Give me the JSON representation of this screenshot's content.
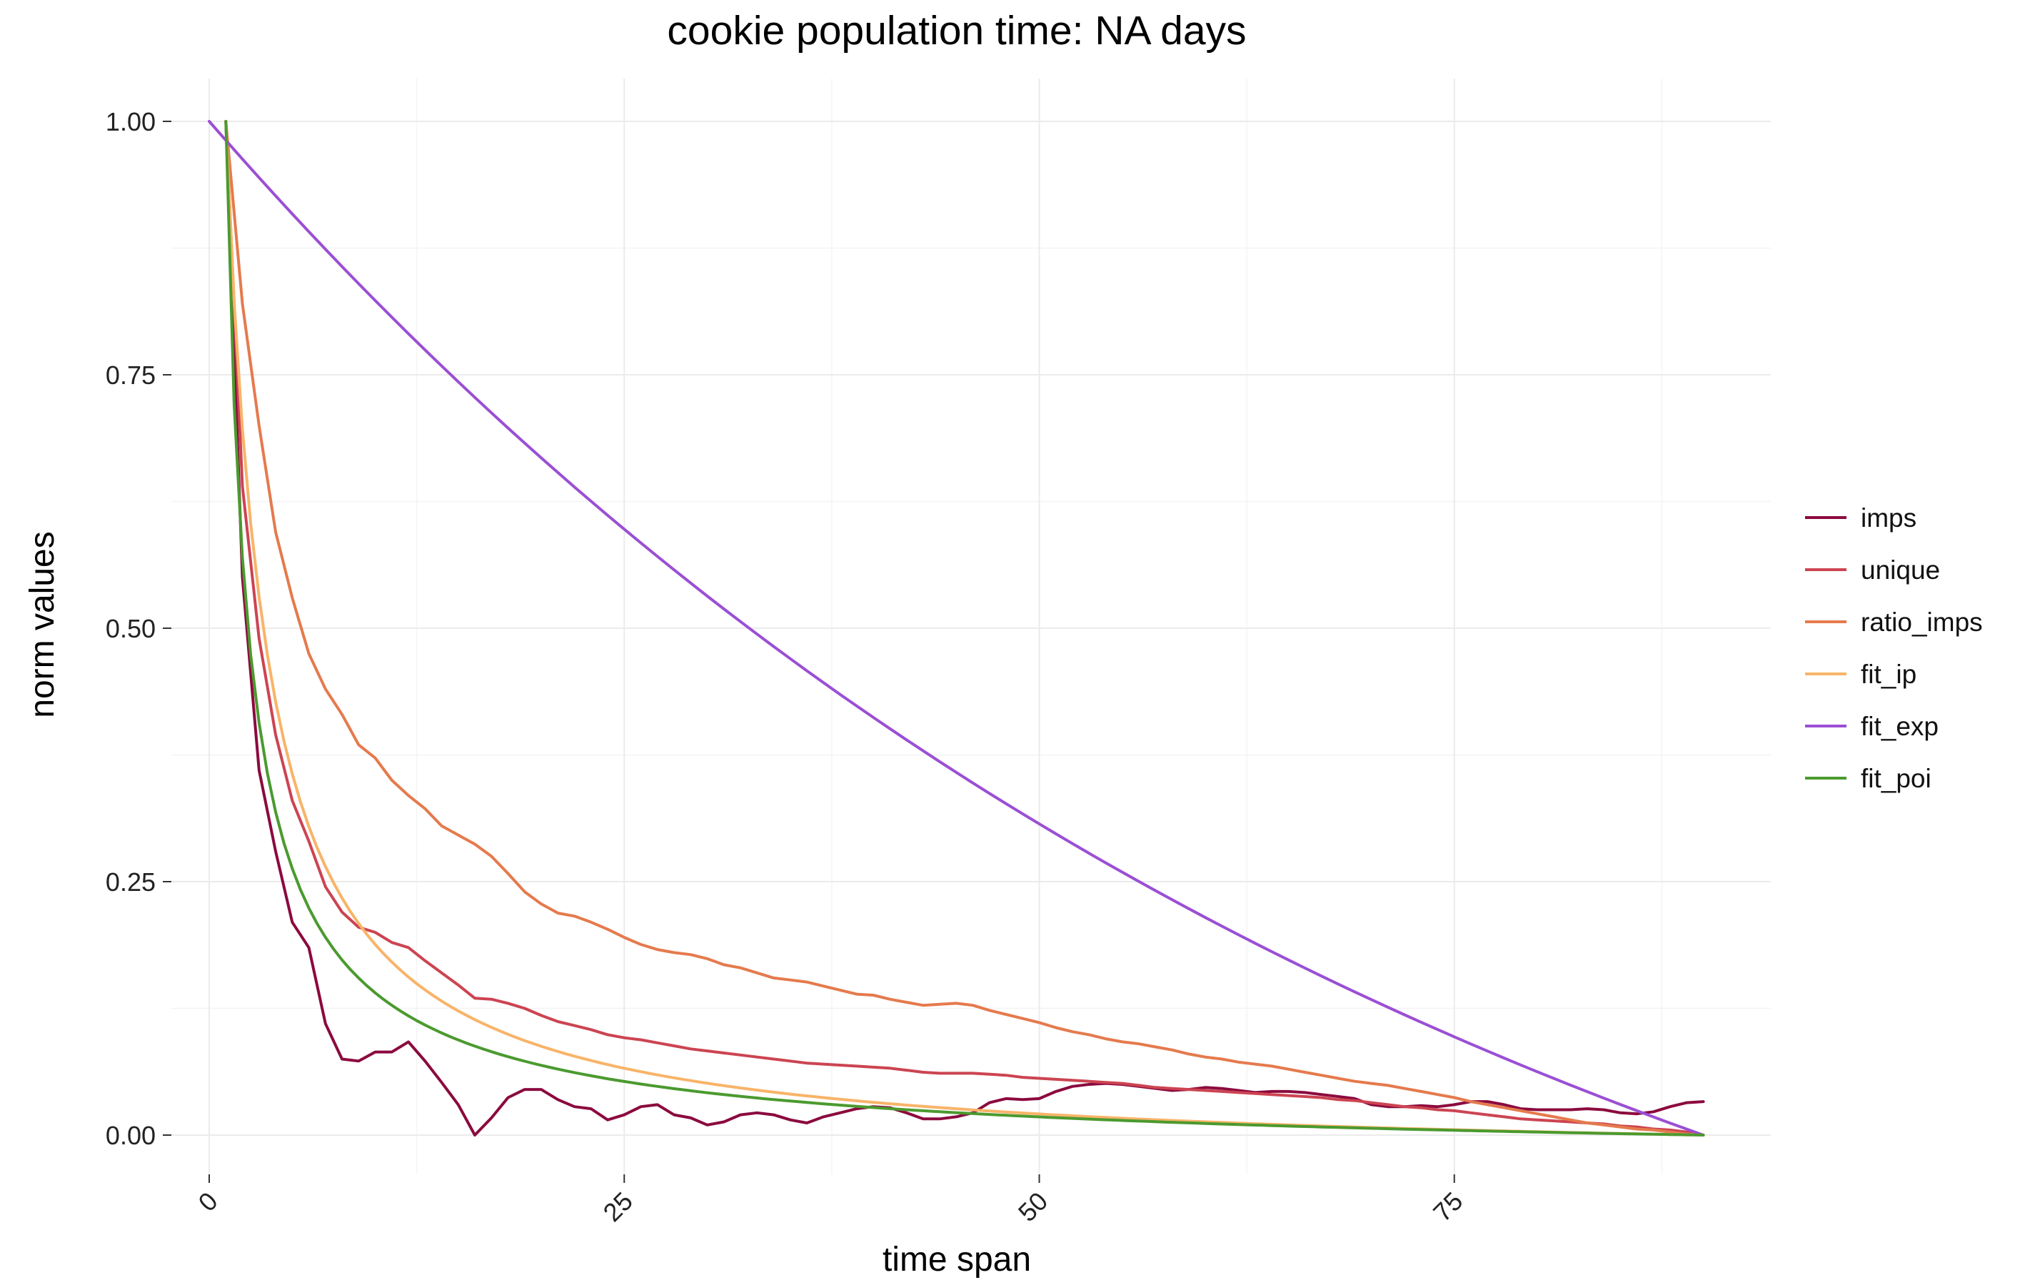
{
  "chart_data": {
    "type": "line",
    "title": "cookie population time: NA days",
    "xlabel": "time span",
    "ylabel": "norm values",
    "xlim": [
      -2.5,
      94.5
    ],
    "ylim": [
      -0.05,
      1.05
    ],
    "x_ticks": [
      0,
      25,
      50,
      75
    ],
    "x_tick_labels": [
      "0",
      "25",
      "50",
      "75"
    ],
    "y_ticks": [
      0,
      0.25,
      0.5,
      0.75,
      1.0
    ],
    "y_tick_labels": [
      "0.00",
      "0.25",
      "0.50",
      "0.75",
      "1.00"
    ],
    "grid": true,
    "legend_position": "right",
    "series": [
      {
        "name": "imps",
        "color": "#8b0a3e",
        "points": [
          [
            1,
            1.0
          ],
          [
            2,
            0.55
          ],
          [
            3,
            0.36
          ],
          [
            4,
            0.28
          ],
          [
            5,
            0.21
          ],
          [
            6,
            0.185
          ],
          [
            7,
            0.11
          ],
          [
            8,
            0.075
          ],
          [
            9,
            0.073
          ],
          [
            10,
            0.082
          ],
          [
            11,
            0.082
          ],
          [
            12,
            0.092
          ],
          [
            13,
            0.073
          ],
          [
            14,
            0.052
          ],
          [
            15,
            0.03
          ],
          [
            16,
            0.0
          ],
          [
            17,
            0.017
          ],
          [
            18,
            0.037
          ],
          [
            19,
            0.045
          ],
          [
            20,
            0.045
          ],
          [
            21,
            0.035
          ],
          [
            22,
            0.028
          ],
          [
            23,
            0.026
          ],
          [
            24,
            0.015
          ],
          [
            25,
            0.02
          ],
          [
            26,
            0.028
          ],
          [
            27,
            0.03
          ],
          [
            28,
            0.02
          ],
          [
            29,
            0.017
          ],
          [
            30,
            0.01
          ],
          [
            31,
            0.013
          ],
          [
            32,
            0.02
          ],
          [
            33,
            0.022
          ],
          [
            34,
            0.02
          ],
          [
            35,
            0.015
          ],
          [
            36,
            0.012
          ],
          [
            37,
            0.018
          ],
          [
            38,
            0.022
          ],
          [
            39,
            0.026
          ],
          [
            40,
            0.028
          ],
          [
            41,
            0.027
          ],
          [
            42,
            0.022
          ],
          [
            43,
            0.016
          ],
          [
            44,
            0.016
          ],
          [
            45,
            0.018
          ],
          [
            46,
            0.022
          ],
          [
            47,
            0.032
          ],
          [
            48,
            0.036
          ],
          [
            49,
            0.035
          ],
          [
            50,
            0.036
          ],
          [
            51,
            0.043
          ],
          [
            52,
            0.048
          ],
          [
            53,
            0.05
          ],
          [
            54,
            0.051
          ],
          [
            55,
            0.05
          ],
          [
            56,
            0.048
          ],
          [
            57,
            0.046
          ],
          [
            58,
            0.044
          ],
          [
            59,
            0.045
          ],
          [
            60,
            0.047
          ],
          [
            61,
            0.046
          ],
          [
            62,
            0.044
          ],
          [
            63,
            0.042
          ],
          [
            64,
            0.043
          ],
          [
            65,
            0.043
          ],
          [
            66,
            0.042
          ],
          [
            67,
            0.04
          ],
          [
            68,
            0.038
          ],
          [
            69,
            0.036
          ],
          [
            70,
            0.03
          ],
          [
            71,
            0.028
          ],
          [
            72,
            0.028
          ],
          [
            73,
            0.029
          ],
          [
            74,
            0.028
          ],
          [
            75,
            0.03
          ],
          [
            76,
            0.033
          ],
          [
            77,
            0.033
          ],
          [
            78,
            0.03
          ],
          [
            79,
            0.026
          ],
          [
            80,
            0.025
          ],
          [
            81,
            0.025
          ],
          [
            82,
            0.025
          ],
          [
            83,
            0.026
          ],
          [
            84,
            0.025
          ],
          [
            85,
            0.022
          ],
          [
            86,
            0.021
          ],
          [
            87,
            0.023
          ],
          [
            88,
            0.028
          ],
          [
            89,
            0.032
          ],
          [
            90,
            0.033
          ]
        ]
      },
      {
        "name": "unique",
        "color": "#cc4452",
        "points": [
          [
            1,
            1.0
          ],
          [
            2,
            0.64
          ],
          [
            3,
            0.49
          ],
          [
            4,
            0.395
          ],
          [
            5,
            0.33
          ],
          [
            6,
            0.29
          ],
          [
            7,
            0.245
          ],
          [
            8,
            0.22
          ],
          [
            9,
            0.205
          ],
          [
            10,
            0.2
          ],
          [
            11,
            0.19
          ],
          [
            12,
            0.185
          ],
          [
            13,
            0.172
          ],
          [
            14,
            0.16
          ],
          [
            15,
            0.148
          ],
          [
            16,
            0.135
          ],
          [
            17,
            0.134
          ],
          [
            18,
            0.13
          ],
          [
            19,
            0.125
          ],
          [
            20,
            0.118
          ],
          [
            21,
            0.112
          ],
          [
            22,
            0.108
          ],
          [
            23,
            0.104
          ],
          [
            24,
            0.099
          ],
          [
            25,
            0.096
          ],
          [
            26,
            0.094
          ],
          [
            27,
            0.091
          ],
          [
            28,
            0.088
          ],
          [
            29,
            0.085
          ],
          [
            30,
            0.083
          ],
          [
            31,
            0.081
          ],
          [
            32,
            0.079
          ],
          [
            33,
            0.077
          ],
          [
            34,
            0.075
          ],
          [
            35,
            0.073
          ],
          [
            36,
            0.071
          ],
          [
            37,
            0.07
          ],
          [
            38,
            0.069
          ],
          [
            39,
            0.068
          ],
          [
            40,
            0.067
          ],
          [
            41,
            0.066
          ],
          [
            42,
            0.064
          ],
          [
            43,
            0.062
          ],
          [
            44,
            0.061
          ],
          [
            45,
            0.061
          ],
          [
            46,
            0.061
          ],
          [
            47,
            0.06
          ],
          [
            48,
            0.059
          ],
          [
            49,
            0.057
          ],
          [
            50,
            0.056
          ],
          [
            51,
            0.055
          ],
          [
            52,
            0.054
          ],
          [
            53,
            0.053
          ],
          [
            54,
            0.052
          ],
          [
            55,
            0.051
          ],
          [
            56,
            0.049
          ],
          [
            57,
            0.047
          ],
          [
            58,
            0.046
          ],
          [
            59,
            0.045
          ],
          [
            60,
            0.044
          ],
          [
            61,
            0.043
          ],
          [
            62,
            0.042
          ],
          [
            63,
            0.041
          ],
          [
            64,
            0.04
          ],
          [
            65,
            0.039
          ],
          [
            66,
            0.038
          ],
          [
            67,
            0.037
          ],
          [
            68,
            0.035
          ],
          [
            69,
            0.034
          ],
          [
            70,
            0.032
          ],
          [
            71,
            0.03
          ],
          [
            72,
            0.028
          ],
          [
            73,
            0.027
          ],
          [
            74,
            0.025
          ],
          [
            75,
            0.024
          ],
          [
            76,
            0.022
          ],
          [
            77,
            0.02
          ],
          [
            78,
            0.018
          ],
          [
            79,
            0.016
          ],
          [
            80,
            0.015
          ],
          [
            81,
            0.014
          ],
          [
            82,
            0.013
          ],
          [
            83,
            0.012
          ],
          [
            84,
            0.011
          ],
          [
            85,
            0.009
          ],
          [
            86,
            0.008
          ],
          [
            87,
            0.006
          ],
          [
            88,
            0.005
          ],
          [
            89,
            0.003
          ],
          [
            90,
            0.0
          ]
        ]
      },
      {
        "name": "ratio_imps",
        "color": "#e57a4d",
        "points": [
          [
            1,
            1.0
          ],
          [
            2,
            0.82
          ],
          [
            3,
            0.7
          ],
          [
            4,
            0.595
          ],
          [
            5,
            0.53
          ],
          [
            6,
            0.475
          ],
          [
            7,
            0.44
          ],
          [
            8,
            0.415
          ],
          [
            9,
            0.385
          ],
          [
            10,
            0.372
          ],
          [
            11,
            0.35
          ],
          [
            12,
            0.335
          ],
          [
            13,
            0.322
          ],
          [
            14,
            0.305
          ],
          [
            15,
            0.296
          ],
          [
            16,
            0.287
          ],
          [
            17,
            0.275
          ],
          [
            18,
            0.258
          ],
          [
            19,
            0.24
          ],
          [
            20,
            0.228
          ],
          [
            21,
            0.219
          ],
          [
            22,
            0.216
          ],
          [
            23,
            0.21
          ],
          [
            24,
            0.203
          ],
          [
            25,
            0.195
          ],
          [
            26,
            0.188
          ],
          [
            27,
            0.183
          ],
          [
            28,
            0.18
          ],
          [
            29,
            0.178
          ],
          [
            30,
            0.174
          ],
          [
            31,
            0.168
          ],
          [
            32,
            0.165
          ],
          [
            33,
            0.16
          ],
          [
            34,
            0.155
          ],
          [
            35,
            0.153
          ],
          [
            36,
            0.151
          ],
          [
            37,
            0.147
          ],
          [
            38,
            0.143
          ],
          [
            39,
            0.139
          ],
          [
            40,
            0.138
          ],
          [
            41,
            0.134
          ],
          [
            42,
            0.131
          ],
          [
            43,
            0.128
          ],
          [
            44,
            0.129
          ],
          [
            45,
            0.13
          ],
          [
            46,
            0.128
          ],
          [
            47,
            0.123
          ],
          [
            48,
            0.119
          ],
          [
            49,
            0.115
          ],
          [
            50,
            0.111
          ],
          [
            51,
            0.106
          ],
          [
            52,
            0.102
          ],
          [
            53,
            0.099
          ],
          [
            54,
            0.095
          ],
          [
            55,
            0.092
          ],
          [
            56,
            0.09
          ],
          [
            57,
            0.087
          ],
          [
            58,
            0.084
          ],
          [
            59,
            0.08
          ],
          [
            60,
            0.077
          ],
          [
            61,
            0.075
          ],
          [
            62,
            0.072
          ],
          [
            63,
            0.07
          ],
          [
            64,
            0.068
          ],
          [
            65,
            0.065
          ],
          [
            66,
            0.062
          ],
          [
            67,
            0.059
          ],
          [
            68,
            0.056
          ],
          [
            69,
            0.053
          ],
          [
            70,
            0.051
          ],
          [
            71,
            0.049
          ],
          [
            72,
            0.046
          ],
          [
            73,
            0.043
          ],
          [
            74,
            0.04
          ],
          [
            75,
            0.037
          ],
          [
            76,
            0.033
          ],
          [
            77,
            0.03
          ],
          [
            78,
            0.027
          ],
          [
            79,
            0.024
          ],
          [
            80,
            0.021
          ],
          [
            81,
            0.018
          ],
          [
            82,
            0.015
          ],
          [
            83,
            0.012
          ],
          [
            84,
            0.01
          ],
          [
            85,
            0.008
          ],
          [
            86,
            0.006
          ],
          [
            87,
            0.005
          ],
          [
            88,
            0.003
          ],
          [
            89,
            0.001
          ],
          [
            90,
            0.0
          ]
        ]
      },
      {
        "name": "fit_ip",
        "color": "#f8b469",
        "fn": "fit_ip"
      },
      {
        "name": "fit_exp",
        "color": "#9b4fd4",
        "fn": "fit_exp"
      },
      {
        "name": "fit_poi",
        "color": "#4b9a2f",
        "fn": "fit_poi"
      }
    ]
  }
}
